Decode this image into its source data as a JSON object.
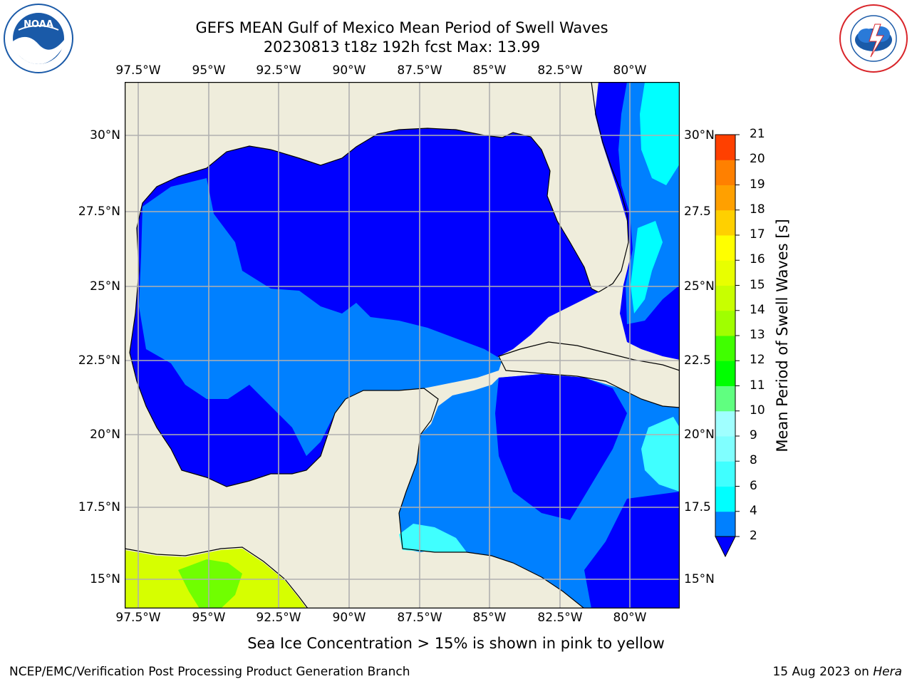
{
  "title": {
    "line1": "GEFS MEAN Gulf of Mexico Mean Period of Swell Waves",
    "line2": "20230813 t18z 192h fcst   Max: 13.99"
  },
  "logos": {
    "left": {
      "name": "NOAA",
      "ring_text": "NATIONAL OCEANIC AND ATMOSPHERIC ADMINISTRATION · U.S. DEPARTMENT OF COMMERCE",
      "color": "#1a5aa8"
    },
    "right": {
      "name": "NATIONAL WEATHER SERVICE",
      "color": "#d9252a"
    }
  },
  "map": {
    "lon_labels": [
      "97.5°W",
      "95°W",
      "92.5°W",
      "90°W",
      "87.5°W",
      "85°W",
      "82.5°W",
      "80°W"
    ],
    "lat_labels_left": [
      "30°N",
      "27.5°N",
      "25°N",
      "22.5°N",
      "20°N",
      "17.5°N",
      "15°N"
    ],
    "lat_labels_right": [
      "30°N",
      "27.5",
      "25°N",
      "22.5",
      "20°N",
      "17.5",
      "15°N"
    ],
    "colors": {
      "land": "#efeddc",
      "ocean_low": "#0000ff",
      "ocean_mid": "#0080ff",
      "ocean_cyan": "#00ffff",
      "ocean_light": "#40ffff",
      "grid": "#b0b0b0",
      "ice_yellow": "#d6ff00",
      "ice_green": "#70ff00"
    }
  },
  "colorbar": {
    "label": "Mean Period of Swell Waves [s]",
    "ticks": [
      "2",
      "4",
      "6",
      "8",
      "9",
      "10",
      "11",
      "12",
      "13",
      "14",
      "15",
      "16",
      "17",
      "18",
      "19",
      "20",
      "21"
    ],
    "colors": [
      "#0080ff",
      "#00ffff",
      "#40ffff",
      "#80ffff",
      "#a0ffff",
      "#60ff80",
      "#00ff00",
      "#40ff00",
      "#a0ff00",
      "#c8ff00",
      "#e8ff00",
      "#ffff00",
      "#ffd000",
      "#ffa000",
      "#ff8000",
      "#ff4000",
      "#ff2000",
      "#ff0000"
    ],
    "extend_color": "#0000ff"
  },
  "footer": {
    "note": "Sea Ice Concentration > 15% is shown in pink to yellow",
    "left": "NCEP/EMC/Verification Post Processing Product Generation Branch",
    "right_prefix": "15 Aug 2023 on ",
    "right_host": "Hera"
  }
}
